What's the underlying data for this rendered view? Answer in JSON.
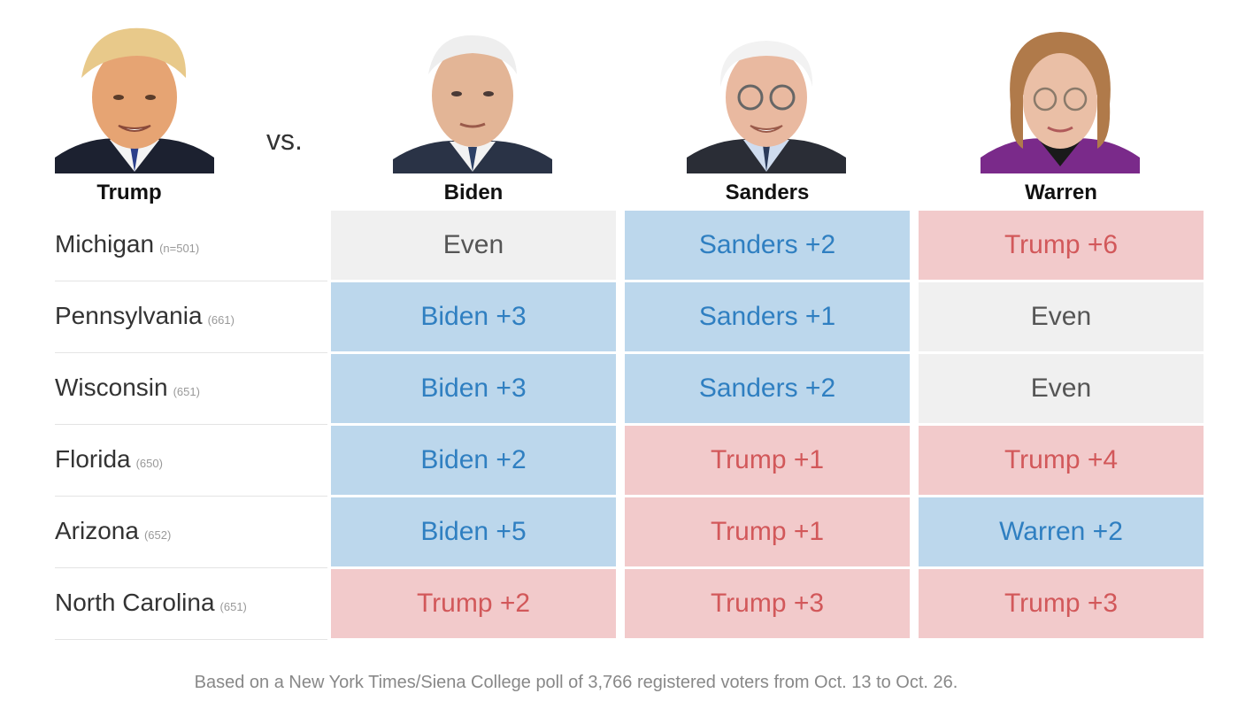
{
  "challenger": {
    "name": "Trump"
  },
  "vs_label": "vs.",
  "candidates": [
    {
      "key": "biden",
      "name": "Biden"
    },
    {
      "key": "sanders",
      "name": "Sanders"
    },
    {
      "key": "warren",
      "name": "Warren"
    }
  ],
  "chart_data": {
    "type": "table",
    "columns": [
      "Biden",
      "Sanders",
      "Warren"
    ],
    "rows": [
      {
        "state": "Michigan",
        "n": "(n=501)",
        "results": [
          {
            "text": "Even",
            "leader": "even",
            "margin": 0
          },
          {
            "text": "Sanders +2",
            "leader": "dem",
            "margin": 2
          },
          {
            "text": "Trump +6",
            "leader": "rep",
            "margin": 6
          }
        ]
      },
      {
        "state": "Pennsylvania",
        "n": "(661)",
        "results": [
          {
            "text": "Biden +3",
            "leader": "dem",
            "margin": 3
          },
          {
            "text": "Sanders +1",
            "leader": "dem",
            "margin": 1
          },
          {
            "text": "Even",
            "leader": "even",
            "margin": 0
          }
        ]
      },
      {
        "state": "Wisconsin",
        "n": "(651)",
        "results": [
          {
            "text": "Biden +3",
            "leader": "dem",
            "margin": 3
          },
          {
            "text": "Sanders +2",
            "leader": "dem",
            "margin": 2
          },
          {
            "text": "Even",
            "leader": "even",
            "margin": 0
          }
        ]
      },
      {
        "state": "Florida",
        "n": "(650)",
        "results": [
          {
            "text": "Biden +2",
            "leader": "dem",
            "margin": 2
          },
          {
            "text": "Trump +1",
            "leader": "rep",
            "margin": 1
          },
          {
            "text": "Trump +4",
            "leader": "rep",
            "margin": 4
          }
        ]
      },
      {
        "state": "Arizona",
        "n": "(652)",
        "results": [
          {
            "text": "Biden +5",
            "leader": "dem",
            "margin": 5
          },
          {
            "text": "Trump +1",
            "leader": "rep",
            "margin": 1
          },
          {
            "text": "Warren +2",
            "leader": "dem",
            "margin": 2
          }
        ]
      },
      {
        "state": "North Carolina",
        "n": "(651)",
        "results": [
          {
            "text": "Trump +2",
            "leader": "rep",
            "margin": 2
          },
          {
            "text": "Trump +3",
            "leader": "rep",
            "margin": 3
          },
          {
            "text": "Trump +3",
            "leader": "rep",
            "margin": 3
          }
        ]
      }
    ]
  },
  "colors": {
    "dem_bg": "#bcd7ec",
    "dem_text": "#2f7fc1",
    "rep_bg": "#f2cacb",
    "rep_text": "#d2585a",
    "even_bg": "#f0f0f0",
    "even_text": "#555555"
  },
  "footnote": "Based on a New York Times/Siena College poll of 3,766 registered voters from Oct. 13 to Oct. 26."
}
